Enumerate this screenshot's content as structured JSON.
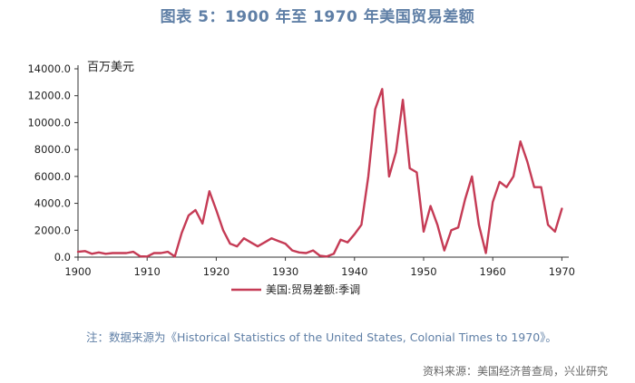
{
  "title": "图表 5：1900 年至 1970 年美国贸易差额",
  "note": "注：数据来源为《Historical Statistics of the United States, Colonial Times to 1970》。",
  "source": "资料来源：美国经济普查局，兴业研究",
  "colors": {
    "title": "#5f7fa6",
    "series": "#c53b55"
  },
  "chart_data": {
    "type": "line",
    "unit_label": "百万美元",
    "x": [
      1900,
      1901,
      1902,
      1903,
      1904,
      1905,
      1906,
      1907,
      1908,
      1909,
      1910,
      1911,
      1912,
      1913,
      1914,
      1915,
      1916,
      1917,
      1918,
      1919,
      1920,
      1921,
      1922,
      1923,
      1924,
      1925,
      1926,
      1927,
      1928,
      1929,
      1930,
      1931,
      1932,
      1933,
      1934,
      1935,
      1936,
      1937,
      1938,
      1939,
      1940,
      1941,
      1942,
      1943,
      1944,
      1945,
      1946,
      1947,
      1948,
      1949,
      1950,
      1951,
      1952,
      1953,
      1954,
      1955,
      1956,
      1957,
      1958,
      1959,
      1960,
      1961,
      1962,
      1963,
      1964,
      1965,
      1966,
      1967,
      1968,
      1969,
      1970
    ],
    "series": [
      {
        "name": "美国:贸易差额:季调",
        "color": "#c53b55",
        "values": [
          400,
          450,
          250,
          350,
          250,
          300,
          300,
          300,
          400,
          60,
          50,
          300,
          300,
          400,
          50,
          1800,
          3100,
          3500,
          2500,
          4900,
          3500,
          2000,
          1000,
          800,
          1400,
          1100,
          800,
          1100,
          1400,
          1200,
          1000,
          500,
          350,
          300,
          500,
          100,
          50,
          250,
          1300,
          1100,
          1700,
          2400,
          6000,
          11000,
          12500,
          6000,
          7800,
          11700,
          6600,
          6300,
          1900,
          3800,
          2400,
          500,
          2000,
          2200,
          4300,
          6000,
          2400,
          300,
          4100,
          5600,
          5200,
          6000,
          8600,
          7100,
          5200,
          5200,
          2400,
          1900,
          3600
        ]
      }
    ],
    "xlim": [
      1900,
      1971
    ],
    "ylim": [
      0,
      14000
    ],
    "x_ticks": [
      1900,
      1910,
      1920,
      1930,
      1940,
      1950,
      1960,
      1970
    ],
    "y_ticks": [
      0,
      2000,
      4000,
      6000,
      8000,
      10000,
      12000,
      14000
    ],
    "y_tick_labels": [
      "0.0",
      "2000.0",
      "4000.0",
      "6000.0",
      "8000.0",
      "10000.0",
      "12000.0",
      "14000.0"
    ],
    "grid": false,
    "legend_position": "bottom-center"
  }
}
